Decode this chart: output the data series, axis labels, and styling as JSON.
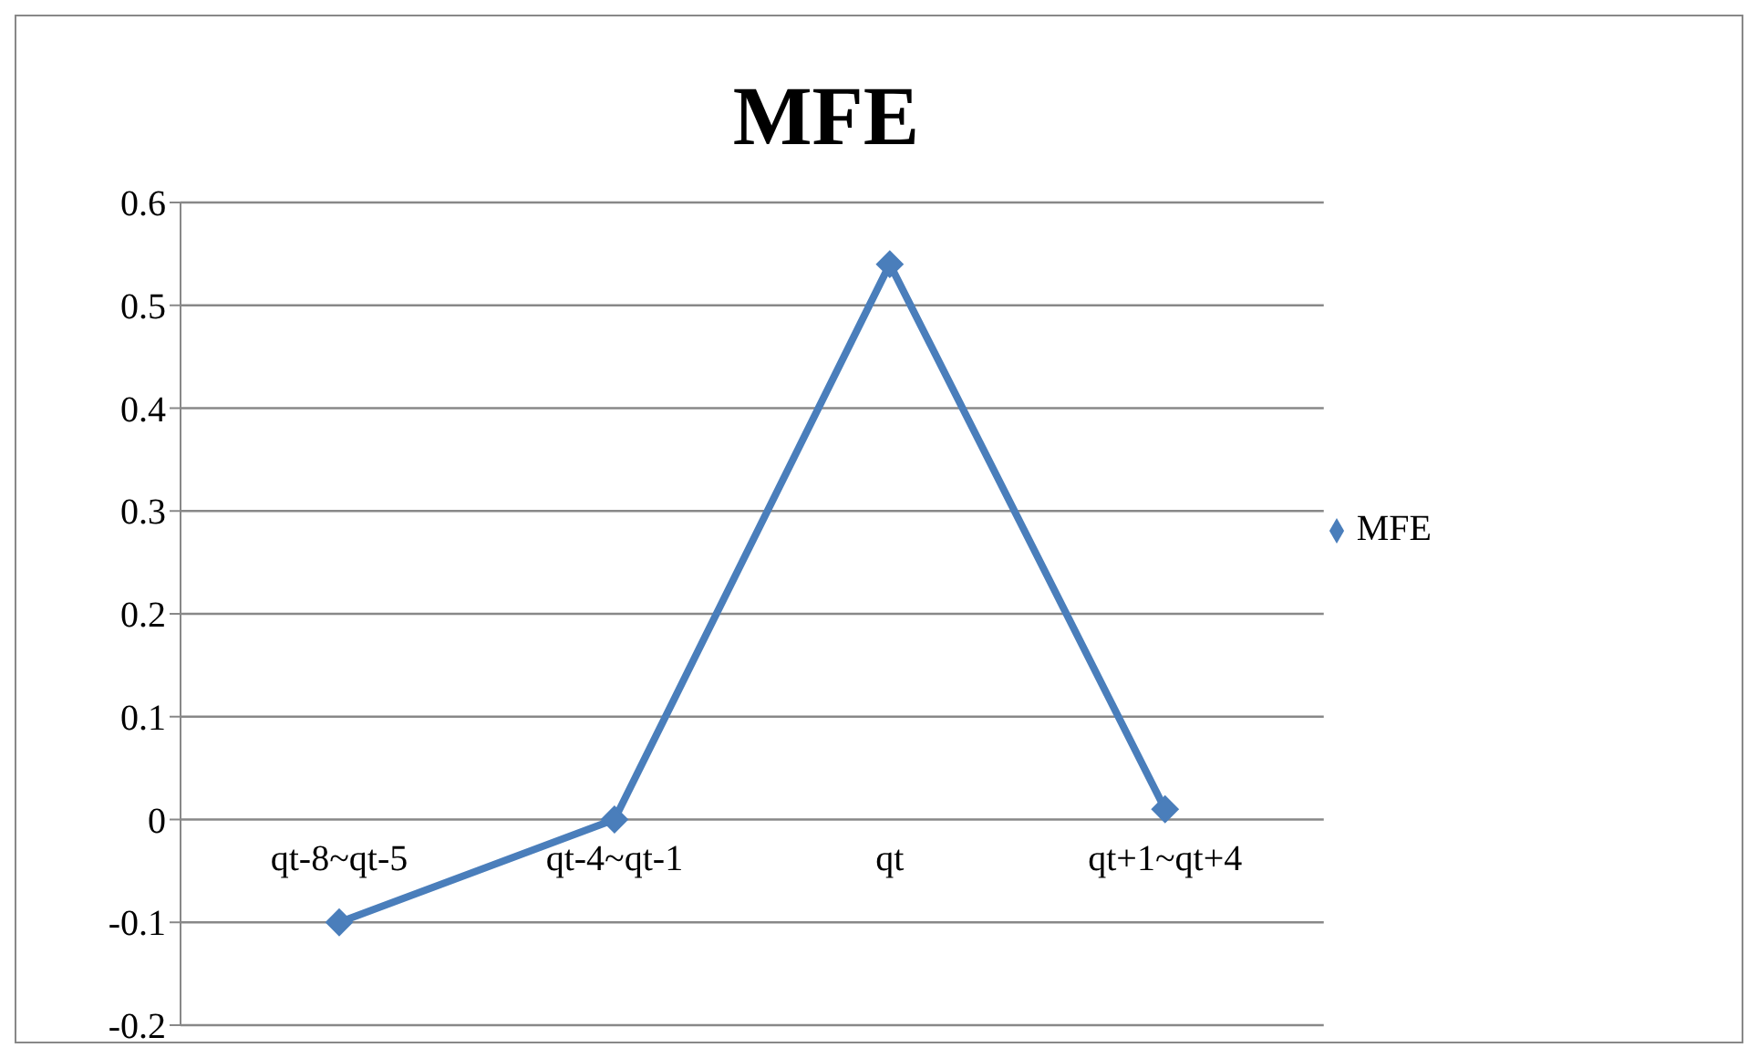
{
  "chart_data": {
    "type": "line",
    "title": "MFE",
    "categories": [
      "qt-8~qt-5",
      "qt-4~qt-1",
      "qt",
      "qt+1~qt+4"
    ],
    "series": [
      {
        "name": "MFE",
        "color": "#4a7ebb",
        "values": [
          -0.1,
          0,
          0.54,
          0.01
        ]
      }
    ],
    "ylim": [
      -0.2,
      0.6
    ],
    "yticks": [
      -0.2,
      -0.1,
      0,
      0.1,
      0.2,
      0.3,
      0.4,
      0.5,
      0.6
    ],
    "grid": "y",
    "legend": "right",
    "marker": "diamond",
    "line_style": "solid"
  }
}
